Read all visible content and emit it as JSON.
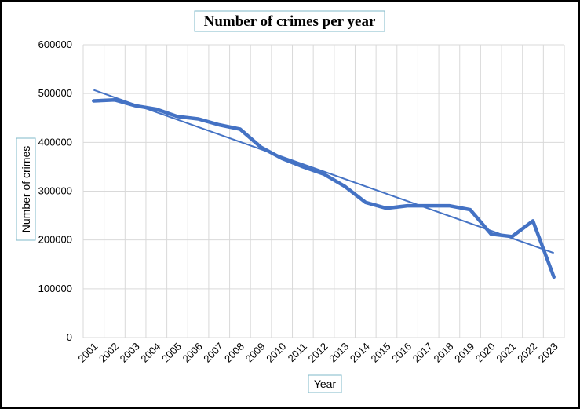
{
  "chart_data": {
    "type": "line",
    "title": "Number of crimes per year",
    "xlabel": "Year",
    "ylabel": "Number of crimes",
    "categories": [
      "2001",
      "2002",
      "2003",
      "2004",
      "2005",
      "2006",
      "2007",
      "2008",
      "2009",
      "2010",
      "2011",
      "2012",
      "2013",
      "2014",
      "2015",
      "2016",
      "2017",
      "2018",
      "2019",
      "2020",
      "2021",
      "2022",
      "2023"
    ],
    "series": [
      {
        "values": [
          485000,
          487000,
          475000,
          468000,
          453000,
          448000,
          436000,
          427000,
          390000,
          367000,
          350000,
          335000,
          310000,
          277000,
          265000,
          270000,
          270000,
          270000,
          262000,
          212000,
          207000,
          239000,
          124000
        ],
        "color": "#4472c4"
      }
    ],
    "trendline": {
      "type": "linear",
      "color": "#4472c4"
    },
    "ylim": [
      0,
      600000
    ],
    "yticks": [
      0,
      100000,
      200000,
      300000,
      400000,
      500000,
      600000
    ],
    "ytick_labels": [
      "0",
      "100000",
      "200000",
      "300000",
      "400000",
      "500000",
      "600000"
    ],
    "grid": true,
    "legend": "none"
  }
}
